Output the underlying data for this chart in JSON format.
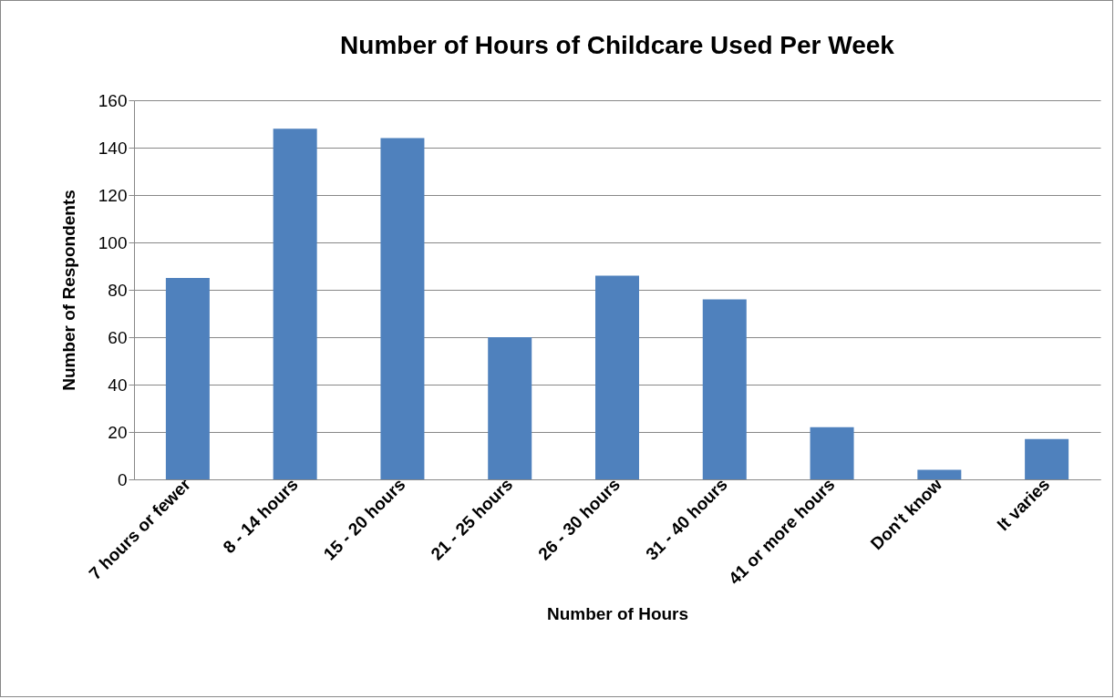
{
  "chart_data": {
    "type": "bar",
    "title": "Number of Hours of Childcare Used Per Week",
    "xlabel": "Number of Hours",
    "ylabel": "Number of Respondents",
    "categories": [
      "7 hours or fewer",
      "8 - 14 hours",
      "15 - 20 hours",
      "21 - 25 hours",
      "26 - 30 hours",
      "31 - 40 hours",
      "41 or more hours",
      "Don't know",
      "It varies"
    ],
    "values": [
      85,
      148,
      144,
      60,
      86,
      76,
      22,
      4,
      17
    ],
    "color": "#4f81bd",
    "ylim": [
      0,
      160
    ],
    "yticks": [
      0,
      20,
      40,
      60,
      80,
      100,
      120,
      140,
      160
    ],
    "grid": "y"
  }
}
